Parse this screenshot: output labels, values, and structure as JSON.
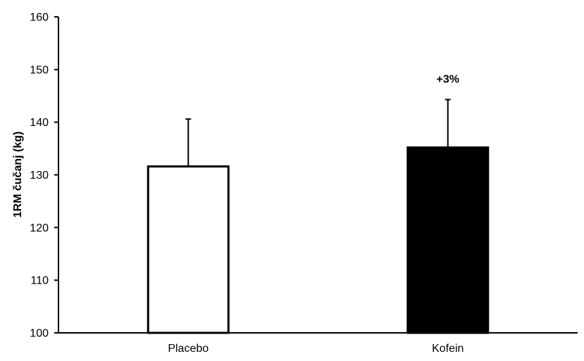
{
  "chart_data": {
    "type": "bar",
    "categories": [
      "Placebo",
      "Kofein"
    ],
    "values": [
      131.6,
      135.2
    ],
    "error_plus": [
      9.0,
      9.1
    ],
    "bar_fill": [
      "#ffffff",
      "#000000"
    ],
    "bar_stroke": "#000000",
    "ylabel": "1RM čučanj (kg)",
    "xlabel": "",
    "ylim": [
      100,
      160
    ],
    "yticks": [
      100,
      110,
      120,
      130,
      140,
      150,
      160
    ],
    "ytick_labels": [
      "100",
      "110",
      "120",
      "130",
      "140",
      "150",
      "160"
    ],
    "annotations": [
      {
        "category": "Kofein",
        "text": "+3%"
      }
    ],
    "grid": false,
    "legend": "none"
  }
}
